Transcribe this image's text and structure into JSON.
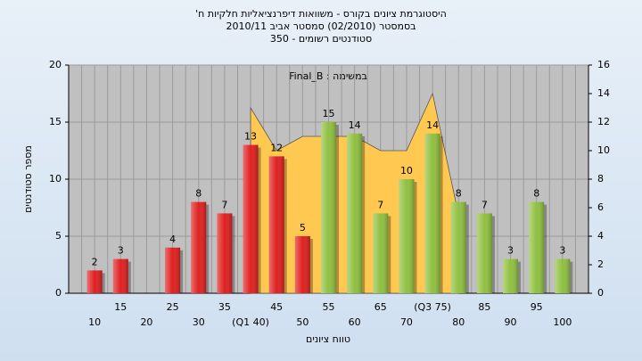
{
  "chart_data": {
    "type": "bar",
    "title": "היסטוגרמת ציונים בקורס - משוואות דיפרנציאליות חלקיות ח'",
    "subtitle": "בסמסטר (02/2010) סמסטר אביב 2010/11",
    "subtitle2": "סטודנטים רשומים - 350",
    "annotation": "במשימה : Final_B",
    "y_label": "מספר סטודנטים",
    "x_label": "טווח ציונים",
    "categories": [
      "10",
      "15",
      "20",
      "25",
      "30",
      "35",
      "(Q1 40)",
      "45",
      "50",
      "55",
      "60",
      "65",
      "70",
      "(Q3 75)",
      "80",
      "85",
      "90",
      "95",
      "100"
    ],
    "values": [
      2,
      3,
      null,
      4,
      8,
      7,
      13,
      12,
      5,
      15,
      14,
      7,
      10,
      14,
      8,
      7,
      3,
      8,
      3
    ],
    "bar_colors": [
      "#e02020",
      "#e02020",
      "#e02020",
      "#e02020",
      "#e02020",
      "#e02020",
      "#e02020",
      "#e02020",
      "#e02020",
      "#8fc040",
      "#8fc040",
      "#8fc040",
      "#8fc040",
      "#8fc040",
      "#8fc040",
      "#8fc040",
      "#8fc040",
      "#8fc040",
      "#8fc040"
    ],
    "area": {
      "axis": "y2",
      "color": "#ffc850",
      "values": [
        null,
        null,
        null,
        null,
        null,
        null,
        13,
        10,
        11,
        11,
        11,
        10,
        10,
        14,
        5.5,
        null,
        null,
        null,
        null
      ]
    },
    "ylim": [
      0,
      20
    ],
    "yticks": [
      0,
      5,
      10,
      15,
      20
    ],
    "y2lim": [
      0,
      16
    ],
    "y2ticks": [
      0,
      2,
      4,
      6,
      8,
      10,
      12,
      14,
      16
    ],
    "grid": true
  }
}
